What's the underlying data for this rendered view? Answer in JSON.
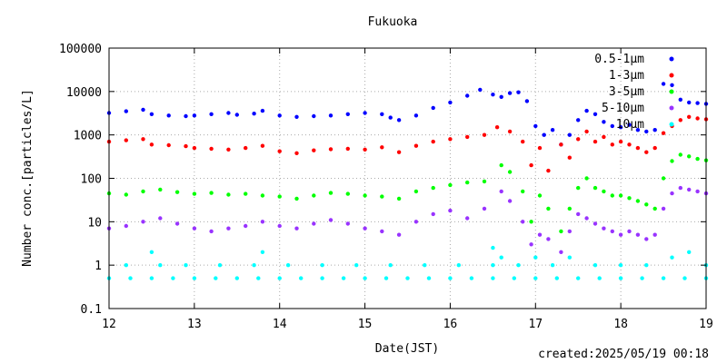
{
  "chart_data": {
    "type": "scatter",
    "title": "Fukuoka",
    "xlabel": "Date(JST)",
    "ylabel": "Number conc.[particles/L]",
    "xlim": [
      12,
      19
    ],
    "ylim": [
      0.1,
      100000
    ],
    "yscale": "log",
    "xticks": [
      "12",
      "13",
      "14",
      "15",
      "16",
      "17",
      "18",
      "19"
    ],
    "yticks": [
      "0.1",
      "1",
      "10",
      "100",
      "1000",
      "10000",
      "100000"
    ],
    "legend_position": "top-right",
    "series": [
      {
        "name": "0.5-1μm",
        "color": "#0000ff",
        "points": [
          [
            12.0,
            3200
          ],
          [
            12.2,
            3500
          ],
          [
            12.4,
            3800
          ],
          [
            12.5,
            3000
          ],
          [
            12.7,
            2800
          ],
          [
            12.9,
            2700
          ],
          [
            13.0,
            2800
          ],
          [
            13.2,
            3000
          ],
          [
            13.4,
            3200
          ],
          [
            13.5,
            2900
          ],
          [
            13.7,
            3100
          ],
          [
            13.8,
            3600
          ],
          [
            14.0,
            2800
          ],
          [
            14.2,
            2600
          ],
          [
            14.4,
            2700
          ],
          [
            14.6,
            2800
          ],
          [
            14.8,
            3000
          ],
          [
            15.0,
            3200
          ],
          [
            15.2,
            3000
          ],
          [
            15.3,
            2500
          ],
          [
            15.4,
            2200
          ],
          [
            15.6,
            2800
          ],
          [
            15.8,
            4200
          ],
          [
            16.0,
            5600
          ],
          [
            16.2,
            8000
          ],
          [
            16.35,
            11000
          ],
          [
            16.5,
            8500
          ],
          [
            16.6,
            7500
          ],
          [
            16.7,
            9200
          ],
          [
            16.8,
            9600
          ],
          [
            16.9,
            6000
          ],
          [
            17.0,
            1600
          ],
          [
            17.1,
            1000
          ],
          [
            17.2,
            1300
          ],
          [
            17.3,
            600
          ],
          [
            17.4,
            1000
          ],
          [
            17.5,
            2200
          ],
          [
            17.6,
            3600
          ],
          [
            17.7,
            3000
          ],
          [
            17.8,
            2000
          ],
          [
            17.9,
            1600
          ],
          [
            18.0,
            1500
          ],
          [
            18.1,
            1700
          ],
          [
            18.2,
            1300
          ],
          [
            18.3,
            1200
          ],
          [
            18.4,
            1300
          ],
          [
            18.5,
            15000
          ],
          [
            18.6,
            14000
          ],
          [
            18.7,
            6500
          ],
          [
            18.8,
            5600
          ],
          [
            18.9,
            5400
          ],
          [
            19.0,
            5200
          ]
        ]
      },
      {
        "name": "1-3μm",
        "color": "#ff0000",
        "points": [
          [
            12.0,
            700
          ],
          [
            12.2,
            750
          ],
          [
            12.4,
            800
          ],
          [
            12.5,
            600
          ],
          [
            12.7,
            580
          ],
          [
            12.9,
            550
          ],
          [
            13.0,
            500
          ],
          [
            13.2,
            480
          ],
          [
            13.4,
            460
          ],
          [
            13.6,
            500
          ],
          [
            13.8,
            560
          ],
          [
            14.0,
            420
          ],
          [
            14.2,
            380
          ],
          [
            14.4,
            440
          ],
          [
            14.6,
            470
          ],
          [
            14.8,
            480
          ],
          [
            15.0,
            460
          ],
          [
            15.2,
            520
          ],
          [
            15.4,
            400
          ],
          [
            15.6,
            560
          ],
          [
            15.8,
            700
          ],
          [
            16.0,
            800
          ],
          [
            16.2,
            900
          ],
          [
            16.4,
            1000
          ],
          [
            16.55,
            1500
          ],
          [
            16.7,
            1200
          ],
          [
            16.85,
            700
          ],
          [
            16.95,
            200
          ],
          [
            17.05,
            500
          ],
          [
            17.15,
            150
          ],
          [
            17.3,
            600
          ],
          [
            17.4,
            300
          ],
          [
            17.5,
            800
          ],
          [
            17.6,
            1200
          ],
          [
            17.7,
            700
          ],
          [
            17.8,
            900
          ],
          [
            17.9,
            600
          ],
          [
            18.0,
            700
          ],
          [
            18.1,
            600
          ],
          [
            18.2,
            500
          ],
          [
            18.3,
            400
          ],
          [
            18.4,
            500
          ],
          [
            18.5,
            1100
          ],
          [
            18.6,
            1600
          ],
          [
            18.7,
            2200
          ],
          [
            18.8,
            2600
          ],
          [
            18.9,
            2400
          ],
          [
            19.0,
            2300
          ]
        ]
      },
      {
        "name": "3-5μm",
        "color": "#00ff00",
        "points": [
          [
            12.0,
            45
          ],
          [
            12.2,
            42
          ],
          [
            12.4,
            50
          ],
          [
            12.6,
            55
          ],
          [
            12.8,
            48
          ],
          [
            13.0,
            44
          ],
          [
            13.2,
            46
          ],
          [
            13.4,
            42
          ],
          [
            13.6,
            44
          ],
          [
            13.8,
            40
          ],
          [
            14.0,
            38
          ],
          [
            14.2,
            34
          ],
          [
            14.4,
            40
          ],
          [
            14.6,
            46
          ],
          [
            14.8,
            44
          ],
          [
            15.0,
            40
          ],
          [
            15.2,
            38
          ],
          [
            15.4,
            34
          ],
          [
            15.6,
            50
          ],
          [
            15.8,
            60
          ],
          [
            16.0,
            70
          ],
          [
            16.2,
            80
          ],
          [
            16.4,
            85
          ],
          [
            16.6,
            200
          ],
          [
            16.7,
            140
          ],
          [
            16.85,
            50
          ],
          [
            16.95,
            10
          ],
          [
            17.05,
            40
          ],
          [
            17.15,
            20
          ],
          [
            17.3,
            6
          ],
          [
            17.4,
            20
          ],
          [
            17.5,
            60
          ],
          [
            17.6,
            100
          ],
          [
            17.7,
            60
          ],
          [
            17.8,
            50
          ],
          [
            17.9,
            40
          ],
          [
            18.0,
            40
          ],
          [
            18.1,
            35
          ],
          [
            18.2,
            30
          ],
          [
            18.3,
            25
          ],
          [
            18.4,
            20
          ],
          [
            18.5,
            100
          ],
          [
            18.6,
            250
          ],
          [
            18.7,
            350
          ],
          [
            18.8,
            320
          ],
          [
            18.9,
            280
          ],
          [
            19.0,
            260
          ]
        ]
      },
      {
        "name": "5-10μm",
        "color": "#9933ff",
        "points": [
          [
            12.0,
            7
          ],
          [
            12.2,
            8
          ],
          [
            12.4,
            10
          ],
          [
            12.6,
            12
          ],
          [
            12.8,
            9
          ],
          [
            13.0,
            7
          ],
          [
            13.2,
            6
          ],
          [
            13.4,
            7
          ],
          [
            13.6,
            8
          ],
          [
            13.8,
            10
          ],
          [
            14.0,
            8
          ],
          [
            14.2,
            7
          ],
          [
            14.4,
            9
          ],
          [
            14.6,
            11
          ],
          [
            14.8,
            9
          ],
          [
            15.0,
            7
          ],
          [
            15.2,
            6
          ],
          [
            15.4,
            5
          ],
          [
            15.6,
            10
          ],
          [
            15.8,
            15
          ],
          [
            16.0,
            18
          ],
          [
            16.2,
            12
          ],
          [
            16.4,
            20
          ],
          [
            16.6,
            50
          ],
          [
            16.7,
            30
          ],
          [
            16.85,
            10
          ],
          [
            16.95,
            3
          ],
          [
            17.05,
            5
          ],
          [
            17.15,
            4
          ],
          [
            17.3,
            2
          ],
          [
            17.4,
            6
          ],
          [
            17.5,
            15
          ],
          [
            17.6,
            12
          ],
          [
            17.7,
            9
          ],
          [
            17.8,
            7
          ],
          [
            17.9,
            6
          ],
          [
            18.0,
            5
          ],
          [
            18.1,
            6
          ],
          [
            18.2,
            5
          ],
          [
            18.3,
            4
          ],
          [
            18.4,
            5
          ],
          [
            18.5,
            20
          ],
          [
            18.6,
            45
          ],
          [
            18.7,
            60
          ],
          [
            18.8,
            55
          ],
          [
            18.9,
            50
          ],
          [
            19.0,
            45
          ]
        ]
      },
      {
        "name": "10μm",
        "color": "#00ffff",
        "points": [
          [
            12.0,
            0.5
          ],
          [
            12.25,
            0.5
          ],
          [
            12.5,
            0.5
          ],
          [
            12.75,
            0.5
          ],
          [
            13.0,
            0.5
          ],
          [
            13.25,
            0.5
          ],
          [
            13.5,
            0.5
          ],
          [
            13.75,
            0.5
          ],
          [
            14.0,
            0.5
          ],
          [
            14.25,
            0.5
          ],
          [
            14.5,
            0.5
          ],
          [
            14.75,
            0.5
          ],
          [
            15.0,
            0.5
          ],
          [
            15.25,
            0.5
          ],
          [
            15.5,
            0.5
          ],
          [
            15.75,
            0.5
          ],
          [
            16.0,
            0.5
          ],
          [
            16.25,
            0.5
          ],
          [
            16.5,
            0.5
          ],
          [
            16.75,
            0.5
          ],
          [
            17.0,
            0.5
          ],
          [
            17.25,
            0.5
          ],
          [
            17.5,
            0.5
          ],
          [
            17.75,
            0.5
          ],
          [
            18.0,
            0.5
          ],
          [
            18.25,
            0.5
          ],
          [
            18.5,
            0.5
          ],
          [
            18.75,
            0.5
          ],
          [
            19.0,
            0.5
          ],
          [
            12.2,
            1
          ],
          [
            12.6,
            1
          ],
          [
            12.9,
            1
          ],
          [
            13.3,
            1
          ],
          [
            13.7,
            1
          ],
          [
            14.1,
            1
          ],
          [
            14.5,
            1
          ],
          [
            14.9,
            1
          ],
          [
            15.3,
            1
          ],
          [
            15.7,
            1
          ],
          [
            16.1,
            1
          ],
          [
            16.5,
            1
          ],
          [
            16.6,
            1.5
          ],
          [
            16.8,
            1
          ],
          [
            17.0,
            1.5
          ],
          [
            17.2,
            1
          ],
          [
            17.4,
            1.5
          ],
          [
            17.7,
            1
          ],
          [
            18.0,
            1
          ],
          [
            18.3,
            1
          ],
          [
            18.6,
            1.5
          ],
          [
            18.8,
            2
          ],
          [
            19.0,
            1
          ],
          [
            12.5,
            2
          ],
          [
            13.8,
            2
          ],
          [
            16.5,
            2.5
          ]
        ]
      }
    ]
  },
  "footer": {
    "created": "created:2025/05/19 00:18"
  }
}
